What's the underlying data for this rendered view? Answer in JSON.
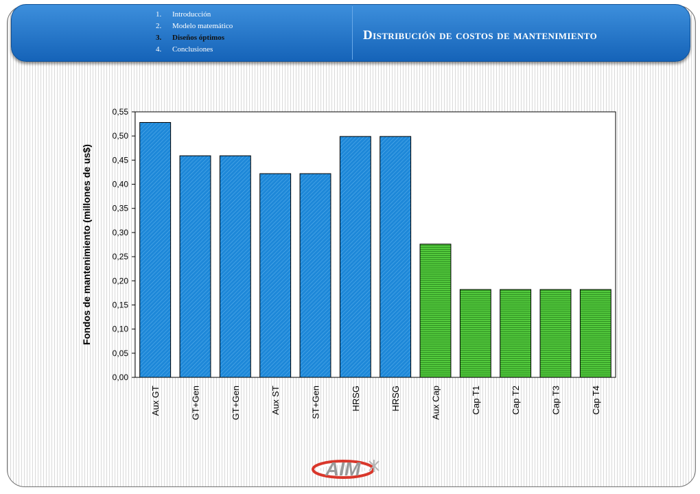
{
  "header": {
    "toc": [
      {
        "num": "1.",
        "label": "Introducción"
      },
      {
        "num": "2.",
        "label": "Modelo matemático"
      },
      {
        "num": "3.",
        "label": "Diseños óptimos"
      },
      {
        "num": "4.",
        "label": "Conclusiones"
      }
    ],
    "active_index": 2,
    "title": "Distribución de costos de mantenimiento"
  },
  "logo": {
    "text": "AIM",
    "colors": [
      "#d9372b",
      "#9a9a9a"
    ]
  },
  "chart_data": {
    "type": "bar",
    "title": "",
    "xlabel": "",
    "ylabel": "Fondos de mantenimiento (millones de us$)",
    "categories": [
      "Aux GT",
      "GT+Gen",
      "GT+Gen",
      "Aux ST",
      "ST+Gen",
      "HRSG",
      "HRSG",
      "Aux Cap",
      "Cap T1",
      "Cap T2",
      "Cap T3",
      "Cap T4"
    ],
    "values": [
      0.528,
      0.459,
      0.459,
      0.422,
      0.422,
      0.499,
      0.499,
      0.276,
      0.182,
      0.182,
      0.182,
      0.182
    ],
    "bar_colors": [
      "#1e88d8",
      "#1e88d8",
      "#1e88d8",
      "#1e88d8",
      "#1e88d8",
      "#1e88d8",
      "#1e88d8",
      "#52c93c",
      "#52c93c",
      "#52c93c",
      "#52c93c",
      "#52c93c"
    ],
    "ylim": [
      0,
      0.55
    ],
    "yticks": [
      "0,00",
      "0,05",
      "0,10",
      "0,15",
      "0,20",
      "0,25",
      "0,30",
      "0,35",
      "0,40",
      "0,45",
      "0,50",
      "0,55"
    ],
    "grid": false,
    "legend": "none"
  }
}
